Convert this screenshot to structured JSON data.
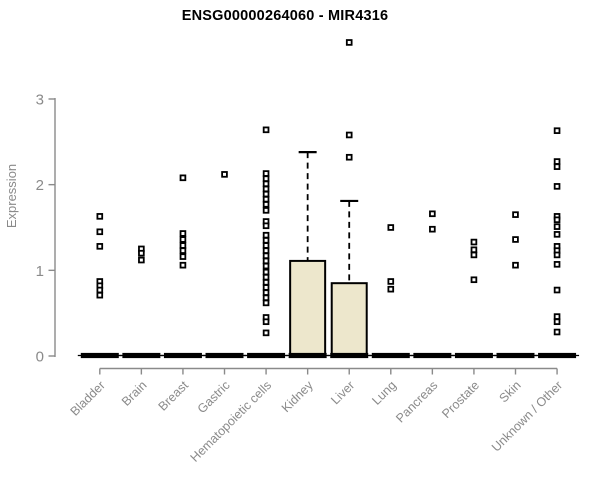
{
  "chart_data": {
    "type": "boxplot",
    "title": "ENSG00000264060 - MIR4316",
    "ylabel": "Expression",
    "xlabel": "",
    "ylim": [
      0,
      3.75
    ],
    "yticks": [
      "0",
      "1",
      "2",
      "3"
    ],
    "grid": false,
    "legend": "none",
    "categories": [
      "Bladder",
      "Brain",
      "Breast",
      "Gastric",
      "Hematopoietic cells",
      "Kidney",
      "Liver",
      "Lung",
      "Pancreas",
      "Prostate",
      "Skin",
      "Unknown / Other"
    ],
    "boxes": [
      {
        "category": "Bladder",
        "q1": 0,
        "median": 0,
        "q3": 0,
        "whisker_low": 0,
        "whisker_high": 0,
        "outliers": [
          1.63,
          1.45,
          1.28,
          0.87,
          0.82,
          0.77,
          0.71
        ]
      },
      {
        "category": "Brain",
        "q1": 0,
        "median": 0,
        "q3": 0,
        "whisker_low": 0,
        "whisker_high": 0,
        "outliers": [
          1.25,
          1.2,
          1.12
        ]
      },
      {
        "category": "Breast",
        "q1": 0,
        "median": 0,
        "q3": 0,
        "whisker_low": 0,
        "whisker_high": 0,
        "outliers": [
          2.08,
          1.43,
          1.36,
          1.29,
          1.23,
          1.16,
          1.06
        ]
      },
      {
        "category": "Gastric",
        "q1": 0,
        "median": 0,
        "q3": 0,
        "whisker_low": 0,
        "whisker_high": 0,
        "outliers": [
          2.12
        ]
      },
      {
        "category": "Hematopoietic cells",
        "q1": 0,
        "median": 0,
        "q3": 0,
        "whisker_low": 0,
        "whisker_high": 0,
        "outliers": [
          2.64,
          2.13,
          2.07,
          2.01,
          1.95,
          1.89,
          1.83,
          1.77,
          1.7,
          1.57,
          1.52,
          1.41,
          1.35,
          1.29,
          1.23,
          1.17,
          1.11,
          1.05,
          0.98,
          0.92,
          0.86,
          0.8,
          0.74,
          0.68,
          0.62,
          0.45,
          0.4,
          0.27
        ]
      },
      {
        "category": "Kidney",
        "q1": 0,
        "median": 0,
        "q3": 1.11,
        "whisker_low": 0,
        "whisker_high": 2.38,
        "outliers": []
      },
      {
        "category": "Liver",
        "q1": 0,
        "median": 0,
        "q3": 0.85,
        "whisker_low": 0,
        "whisker_high": 1.81,
        "outliers": [
          3.66,
          2.58,
          2.32
        ]
      },
      {
        "category": "Lung",
        "q1": 0,
        "median": 0,
        "q3": 0,
        "whisker_low": 0,
        "whisker_high": 0,
        "outliers": [
          1.5,
          0.87,
          0.78
        ]
      },
      {
        "category": "Pancreas",
        "q1": 0,
        "median": 0,
        "q3": 0,
        "whisker_low": 0,
        "whisker_high": 0,
        "outliers": [
          1.66,
          1.48
        ]
      },
      {
        "category": "Prostate",
        "q1": 0,
        "median": 0,
        "q3": 0,
        "whisker_low": 0,
        "whisker_high": 0,
        "outliers": [
          1.33,
          1.24,
          1.18,
          0.89
        ]
      },
      {
        "category": "Skin",
        "q1": 0,
        "median": 0,
        "q3": 0,
        "whisker_low": 0,
        "whisker_high": 0,
        "outliers": [
          1.65,
          1.36,
          1.06
        ]
      },
      {
        "category": "Unknown / Other",
        "q1": 0,
        "median": 0,
        "q3": 0,
        "whisker_low": 0,
        "whisker_high": 0,
        "outliers": [
          2.63,
          2.27,
          2.21,
          1.98,
          1.63,
          1.59,
          1.51,
          1.42,
          1.28,
          1.23,
          1.18,
          1.07,
          0.77,
          0.46,
          0.4,
          0.28
        ]
      }
    ]
  },
  "colors": {
    "background": "#ffffff",
    "box_fill": "#ede7cc",
    "box_stroke": "#000000",
    "median": "#000000",
    "whisker": "#000000",
    "outlier": "#000000",
    "axis": "#8a8a8a",
    "tick_label": "#8a8a8a",
    "title": "#000000"
  }
}
